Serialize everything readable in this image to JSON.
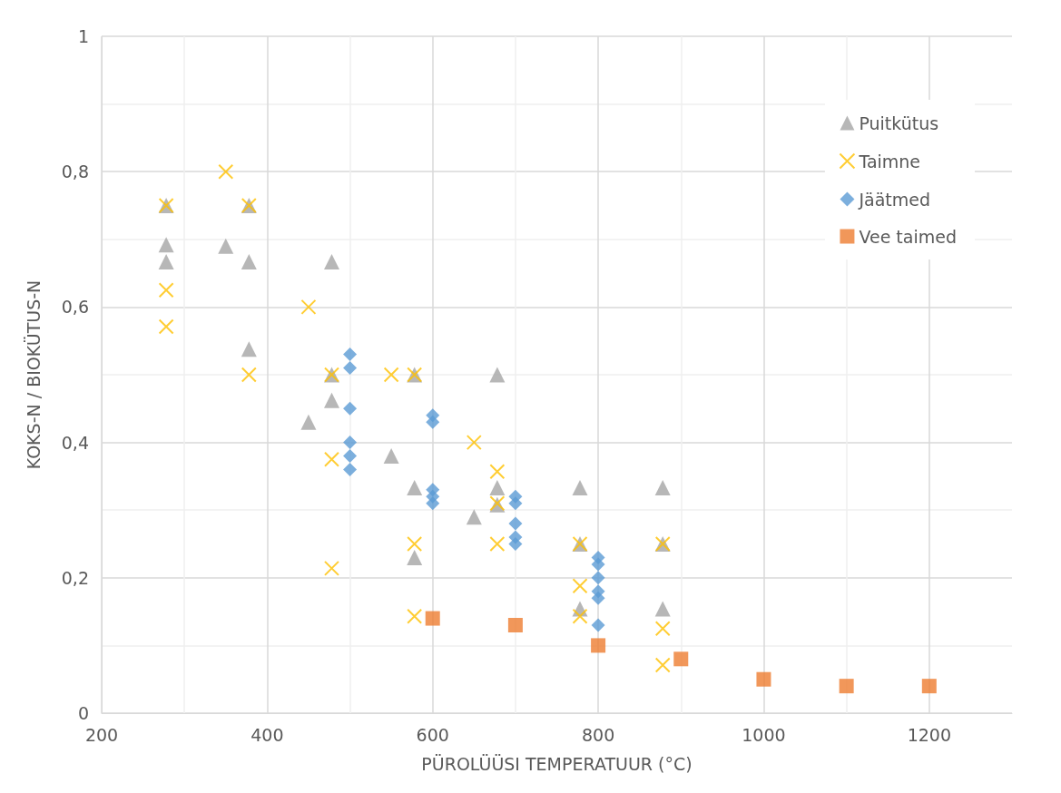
{
  "chart_data": {
    "type": "scatter",
    "xlabel": "PÜROLÜÜSI TEMPERATUUR (°C)",
    "ylabel": "KOKS-N / BIOKÜTUS-N",
    "xlim": [
      200,
      1300
    ],
    "xticks": [
      200,
      400,
      600,
      800,
      1000,
      1200
    ],
    "ylim": [
      0,
      1
    ],
    "yticks": [
      0,
      {
        "value": 0.2,
        "label": "0,2"
      },
      {
        "value": 0.4,
        "label": "0,4"
      },
      {
        "value": 0.6,
        "label": "0,6"
      },
      {
        "value": 0.8,
        "label": "0,8"
      },
      1
    ],
    "grid": true,
    "legend": "top right",
    "series": [
      {
        "name": "Puitkütus",
        "color": "#a5a5a5",
        "marker": "triangle",
        "x": [
          278,
          278,
          278,
          350,
          378,
          378,
          378,
          478,
          478,
          478,
          450,
          550,
          578,
          578,
          578,
          650,
          678,
          678,
          678,
          778,
          778,
          778,
          878,
          878,
          878
        ],
        "values": [
          0.75,
          0.692,
          0.667,
          0.69,
          0.75,
          0.667,
          0.538,
          0.667,
          0.5,
          0.462,
          0.43,
          0.38,
          0.5,
          0.333,
          0.23,
          0.29,
          0.5,
          0.333,
          0.308,
          0.333,
          0.25,
          0.154,
          0.333,
          0.25,
          0.154
        ]
      },
      {
        "name": "Taimne",
        "color": "#ffc000",
        "marker": "cross",
        "x": [
          278,
          278,
          278,
          350,
          378,
          378,
          450,
          478,
          478,
          478,
          550,
          578,
          578,
          578,
          650,
          678,
          678,
          678,
          778,
          778,
          778,
          878,
          878,
          878
        ],
        "values": [
          0.75,
          0.625,
          0.571,
          0.8,
          0.75,
          0.5,
          0.6,
          0.5,
          0.375,
          0.214,
          0.5,
          0.5,
          0.25,
          0.143,
          0.4,
          0.357,
          0.31,
          0.25,
          0.25,
          0.188,
          0.143,
          0.25,
          0.125,
          0.071
        ]
      },
      {
        "name": "Jäätmed",
        "color": "#5b9bd5",
        "marker": "diamond",
        "x": [
          500,
          500,
          500,
          500,
          500,
          500,
          600,
          600,
          600,
          600,
          600,
          700,
          700,
          700,
          700,
          700,
          800,
          800,
          800,
          800,
          800,
          800
        ],
        "values": [
          0.53,
          0.51,
          0.45,
          0.4,
          0.38,
          0.36,
          0.44,
          0.43,
          0.33,
          0.32,
          0.31,
          0.32,
          0.31,
          0.28,
          0.26,
          0.25,
          0.23,
          0.22,
          0.2,
          0.18,
          0.17,
          0.13
        ]
      },
      {
        "name": "Vee taimed",
        "color": "#ed7d31",
        "marker": "square",
        "x": [
          600,
          700,
          800,
          900,
          1000,
          1100,
          1200
        ],
        "values": [
          0.14,
          0.13,
          0.1,
          0.08,
          0.05,
          0.04,
          0.04
        ]
      }
    ]
  }
}
